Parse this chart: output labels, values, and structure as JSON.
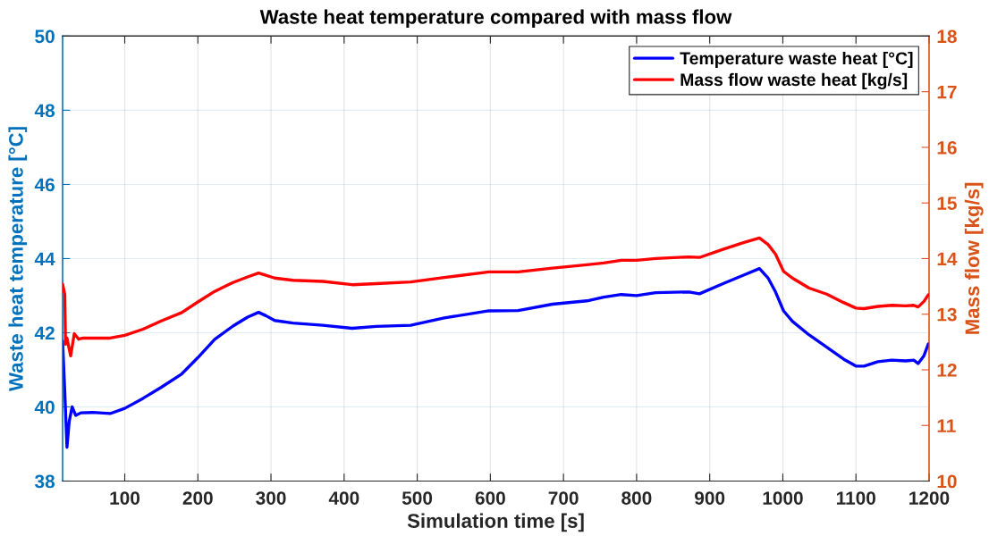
{
  "chart_data": {
    "type": "line",
    "title": "Waste heat temperature compared with mass flow",
    "xlabel": "Simulation time [s]",
    "ylabel": "Waste heat temperature [°C]",
    "y2label": "Mass flow [kg/s]",
    "xlim": [
      15,
      1200
    ],
    "xticks": [
      100,
      200,
      300,
      400,
      500,
      600,
      700,
      800,
      900,
      1000,
      1100,
      1200
    ],
    "ylim": [
      38,
      50
    ],
    "yticks": [
      38,
      40,
      42,
      44,
      46,
      48,
      50
    ],
    "y2lim": [
      10,
      18
    ],
    "y2ticks": [
      10,
      11,
      12,
      13,
      14,
      15,
      16,
      17,
      18
    ],
    "grid": true,
    "legend": "top right",
    "line_style": "solid",
    "series": [
      {
        "name": "Temperature waste heat [°C]",
        "color": "#0000ff",
        "x": [
          15,
          18,
          21,
          24,
          28,
          33,
          40,
          56,
          80,
          100,
          125,
          150,
          178,
          200,
          223,
          248,
          268,
          283,
          293,
          305,
          330,
          371,
          411,
          444,
          491,
          537,
          598,
          638,
          685,
          732,
          755,
          779,
          800,
          826,
          872,
          886,
          919,
          947,
          968,
          980,
          990,
          1001,
          1013,
          1036,
          1060,
          1083,
          1100,
          1111,
          1130,
          1149,
          1168,
          1179,
          1185,
          1193,
          1199
        ],
        "values": [
          41.78,
          40.4,
          38.91,
          39.6,
          40.0,
          39.77,
          39.84,
          39.85,
          39.82,
          39.96,
          40.23,
          40.53,
          40.89,
          41.33,
          41.82,
          42.18,
          42.42,
          42.55,
          42.46,
          42.33,
          42.26,
          42.2,
          42.12,
          42.17,
          42.2,
          42.4,
          42.59,
          42.6,
          42.77,
          42.86,
          42.96,
          43.03,
          43.0,
          43.08,
          43.1,
          43.05,
          43.33,
          43.56,
          43.73,
          43.47,
          43.1,
          42.59,
          42.31,
          41.94,
          41.61,
          41.29,
          41.1,
          41.1,
          41.22,
          41.26,
          41.24,
          41.26,
          41.17,
          41.38,
          41.7
        ]
      },
      {
        "name": "Mass flow waste heat [kg/s]",
        "color": "#ff0000",
        "axis": "y2",
        "x": [
          15,
          18,
          19,
          21,
          26,
          31,
          37,
          43,
          80,
          100,
          125,
          150,
          178,
          200,
          223,
          248,
          268,
          283,
          293,
          305,
          330,
          371,
          411,
          444,
          491,
          537,
          598,
          638,
          685,
          732,
          755,
          779,
          800,
          826,
          872,
          886,
          919,
          947,
          968,
          980,
          990,
          1001,
          1013,
          1036,
          1060,
          1083,
          1100,
          1111,
          1130,
          1149,
          1168,
          1179,
          1185,
          1193,
          1199
        ],
        "values": [
          13.54,
          13.35,
          12.46,
          12.57,
          12.25,
          12.65,
          12.55,
          12.57,
          12.57,
          12.62,
          12.73,
          12.88,
          13.03,
          13.22,
          13.41,
          13.57,
          13.67,
          13.74,
          13.7,
          13.65,
          13.61,
          13.59,
          13.53,
          13.55,
          13.58,
          13.66,
          13.76,
          13.76,
          13.83,
          13.89,
          13.92,
          13.97,
          13.97,
          14.0,
          14.03,
          14.02,
          14.17,
          14.29,
          14.37,
          14.25,
          14.08,
          13.77,
          13.65,
          13.47,
          13.36,
          13.21,
          13.11,
          13.1,
          13.14,
          13.16,
          13.15,
          13.16,
          13.13,
          13.23,
          13.35
        ]
      }
    ]
  }
}
